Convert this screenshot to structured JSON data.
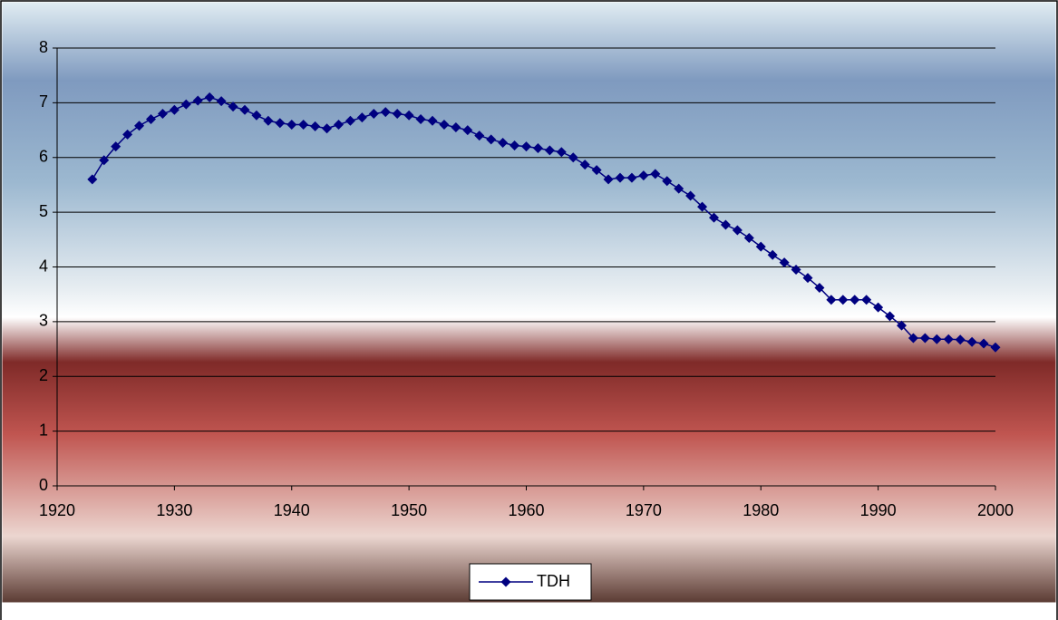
{
  "chart_data": {
    "type": "line",
    "x": [
      1923,
      1924,
      1925,
      1926,
      1927,
      1928,
      1929,
      1930,
      1931,
      1932,
      1933,
      1934,
      1935,
      1936,
      1937,
      1938,
      1939,
      1940,
      1941,
      1942,
      1943,
      1944,
      1945,
      1946,
      1947,
      1948,
      1949,
      1950,
      1951,
      1952,
      1953,
      1954,
      1955,
      1956,
      1957,
      1958,
      1959,
      1960,
      1961,
      1962,
      1963,
      1964,
      1965,
      1966,
      1967,
      1968,
      1969,
      1970,
      1971,
      1972,
      1973,
      1974,
      1975,
      1976,
      1977,
      1978,
      1979,
      1980,
      1981,
      1982,
      1983,
      1984,
      1985,
      1986,
      1987,
      1988,
      1989,
      1990,
      1991,
      1992,
      1993,
      1994,
      1995,
      1996,
      1997,
      1998,
      1999,
      2000
    ],
    "series": [
      {
        "name": "TDH",
        "color": "#000080",
        "values": [
          5.6,
          5.95,
          6.2,
          6.42,
          6.58,
          6.7,
          6.8,
          6.87,
          6.97,
          7.04,
          7.1,
          7.03,
          6.93,
          6.87,
          6.77,
          6.67,
          6.63,
          6.6,
          6.6,
          6.57,
          6.53,
          6.6,
          6.67,
          6.73,
          6.8,
          6.83,
          6.8,
          6.77,
          6.7,
          6.67,
          6.6,
          6.55,
          6.5,
          6.4,
          6.33,
          6.27,
          6.22,
          6.2,
          6.17,
          6.13,
          6.1,
          6.0,
          5.87,
          5.77,
          5.6,
          5.63,
          5.63,
          5.67,
          5.7,
          5.57,
          5.43,
          5.3,
          5.1,
          4.9,
          4.77,
          4.67,
          4.53,
          4.37,
          4.22,
          4.08,
          3.95,
          3.8,
          3.62,
          3.4,
          3.4,
          3.4,
          3.4,
          3.26,
          3.1,
          2.93,
          2.7,
          2.7,
          2.68,
          2.68,
          2.67,
          2.63,
          2.6,
          2.53
        ]
      }
    ],
    "xlim": [
      1920,
      2000
    ],
    "xticks": [
      1920,
      1930,
      1940,
      1950,
      1960,
      1970,
      1980,
      1990,
      2000
    ],
    "ylim": [
      0,
      8
    ],
    "yticks": [
      0,
      1,
      2,
      3,
      4,
      5,
      6,
      7,
      8
    ],
    "grid": true,
    "legend": "bottom"
  }
}
